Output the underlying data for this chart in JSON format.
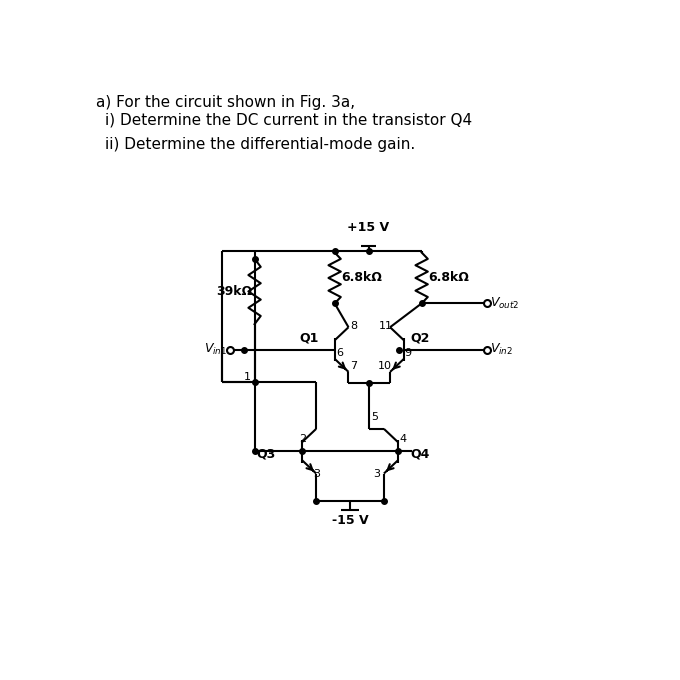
{
  "title1": "a) For the circuit shown in Fig. 3a,",
  "title2": "i) Determine the DC current in the transistor Q4",
  "title3": "ii) Determine the differential-mode gain.",
  "bg": "#ffffff",
  "fg": "#000000",
  "label_68k": "6.8kΩ",
  "label_39k": "39kΩ",
  "label_vcc": "+15 V",
  "label_vee": "-15 V",
  "label_Q1": "Q1",
  "label_Q2": "Q2",
  "label_Q3": "Q3",
  "label_Q4": "Q4",
  "nodes": {
    "n1": "1",
    "n2": "2",
    "n3a": "3",
    "n3b": "3",
    "n4": "4",
    "n5": "5",
    "n6": "6",
    "n7": "7",
    "n8": "8",
    "n9": "9",
    "n10": "10",
    "n11": "11"
  }
}
